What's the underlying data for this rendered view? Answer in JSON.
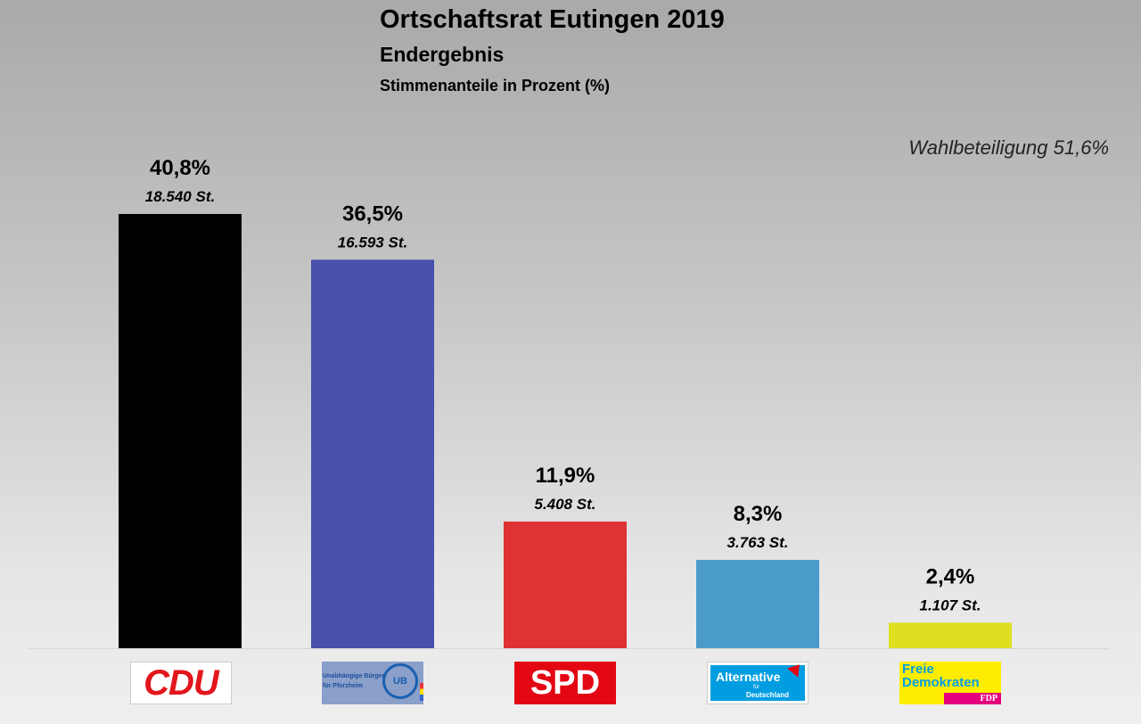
{
  "chart_data": {
    "type": "bar",
    "title": "Ortschaftsrat Eutingen 2019",
    "subtitle": "Endergebnis",
    "ylabel": "Stimmenanteile in Prozent (%)",
    "annotation": "Wahlbeteiligung 51,6%",
    "categories": [
      "CDU",
      "UB",
      "SPD",
      "AfD",
      "FDP"
    ],
    "values": [
      40.8,
      36.5,
      11.9,
      8.3,
      2.4
    ],
    "value_labels": [
      "40,8%",
      "36,5%",
      "11,9%",
      "8,3%",
      "2,4%"
    ],
    "vote_labels": [
      "18.540 St.",
      "16.593 St.",
      "5.408 St.",
      "3.763 St.",
      "1.107 St."
    ],
    "colors": [
      "#000000",
      "#484fac",
      "#df3232",
      "#4a9bc9",
      "#dfdf22"
    ],
    "ylim": [
      0,
      40.8
    ],
    "grid": false,
    "legend": "none"
  },
  "logos": {
    "cdu": "CDU",
    "ub": [
      "Unabhängige Bürger",
      "für Pforzheim",
      "UB"
    ],
    "spd": "SPD",
    "afd": [
      "Alternative",
      "für",
      "Deutschland"
    ],
    "fdp": [
      "Freie",
      "Demokraten",
      "FDP"
    ]
  }
}
